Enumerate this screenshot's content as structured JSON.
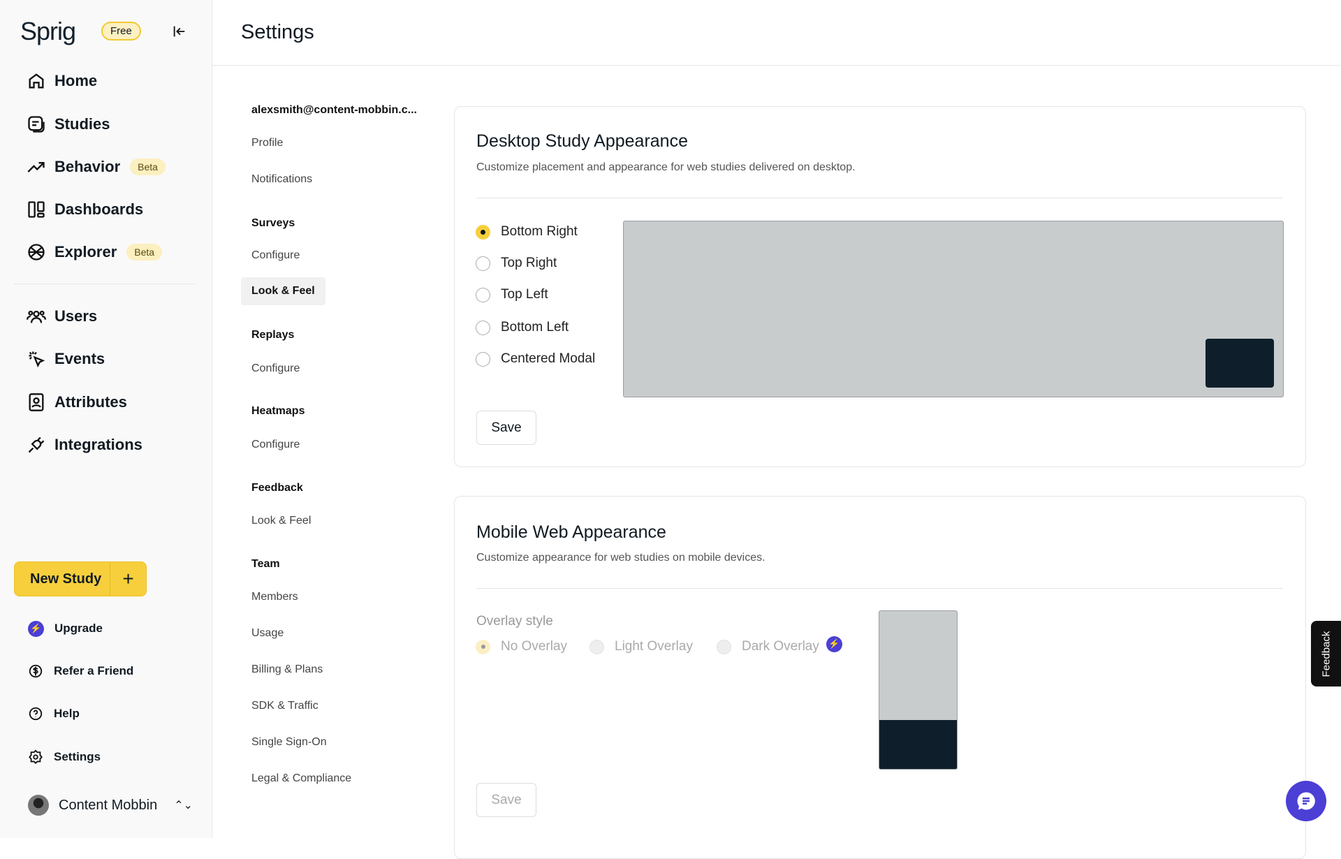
{
  "brand": {
    "logo": "Sprig",
    "plan_badge": "Free"
  },
  "sidebar": {
    "main": [
      {
        "label": "Home",
        "icon": "home-icon"
      },
      {
        "label": "Studies",
        "icon": "studies-icon"
      },
      {
        "label": "Behavior",
        "icon": "trend-icon",
        "badge": "Beta"
      },
      {
        "label": "Dashboards",
        "icon": "dashboard-icon"
      },
      {
        "label": "Explorer",
        "icon": "explorer-icon",
        "badge": "Beta"
      }
    ],
    "data": [
      {
        "label": "Users",
        "icon": "users-icon"
      },
      {
        "label": "Events",
        "icon": "events-icon"
      },
      {
        "label": "Attributes",
        "icon": "attributes-icon"
      },
      {
        "label": "Integrations",
        "icon": "plug-icon"
      }
    ],
    "new_study": "New Study",
    "bottom": [
      {
        "label": "Upgrade",
        "icon": "bolt-icon"
      },
      {
        "label": "Refer a Friend",
        "icon": "dollar-icon"
      },
      {
        "label": "Help",
        "icon": "help-icon"
      },
      {
        "label": "Settings",
        "icon": "gear-icon"
      }
    ],
    "user": "Content Mobbin"
  },
  "header": {
    "title": "Settings"
  },
  "settings_nav": {
    "account": "alexsmith@content-mobbin.c...",
    "items": [
      "Profile",
      "Notifications"
    ],
    "surveys": {
      "label": "Surveys",
      "items": [
        "Configure",
        "Look & Feel"
      ]
    },
    "replays": {
      "label": "Replays",
      "items": [
        "Configure"
      ]
    },
    "heatmaps": {
      "label": "Heatmaps",
      "items": [
        "Configure"
      ]
    },
    "feedback": {
      "label": "Feedback",
      "items": [
        "Look & Feel"
      ]
    },
    "team": {
      "label": "Team",
      "items": [
        "Members",
        "Usage",
        "Billing & Plans",
        "SDK & Traffic",
        "Single Sign-On",
        "Legal & Compliance"
      ]
    },
    "active": "Look & Feel"
  },
  "desktop": {
    "title": "Desktop Study Appearance",
    "subtitle": "Customize placement and appearance for web studies delivered on desktop.",
    "options": [
      "Bottom Right",
      "Top Right",
      "Top Left",
      "Bottom Left",
      "Centered Modal"
    ],
    "selected": "Bottom Right",
    "save": "Save"
  },
  "mobile": {
    "title": "Mobile Web Appearance",
    "subtitle": "Customize appearance for web studies on mobile devices.",
    "overlay_label": "Overlay style",
    "options": [
      "No Overlay",
      "Light Overlay",
      "Dark Overlay"
    ],
    "selected": "No Overlay",
    "save": "Save"
  },
  "feedback_tab": "Feedback",
  "colors": {
    "accent": "#f7cf3c",
    "upgrade": "#4b3fd6",
    "dark": "#0e1f2b"
  }
}
